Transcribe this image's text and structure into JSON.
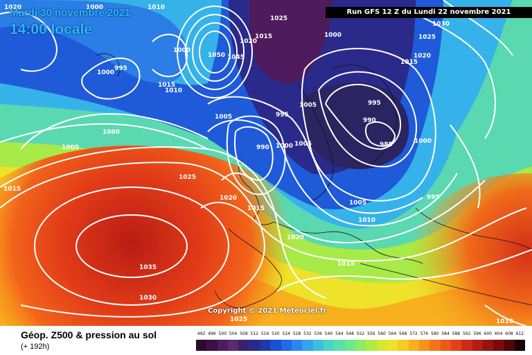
{
  "header": {
    "date": "Mardi 30 novembre 2021",
    "time": "14:00 locale",
    "run": "Run GFS 12 Z du Lundi 22 novembre 2021"
  },
  "copyright": "Copyright © 2021 Meteociel.fr",
  "footer": {
    "parameter": "Géop. Z500 & pression au sol",
    "lead_time": "(+ 192h)"
  },
  "scale": {
    "labels": [
      "492",
      "496",
      "500",
      "504",
      "508",
      "512",
      "516",
      "520",
      "524",
      "528",
      "532",
      "536",
      "540",
      "544",
      "548",
      "552",
      "556",
      "560",
      "564",
      "568",
      "572",
      "576",
      "580",
      "584",
      "588",
      "592",
      "596",
      "600",
      "604",
      "608",
      "612"
    ],
    "colors": [
      "#2a0a2e",
      "#3d0f45",
      "#4e1b5c",
      "#5a2a6e",
      "#3a2170",
      "#2a2a8a",
      "#1f3aa8",
      "#1a4fd0",
      "#1e6aea",
      "#2a88f0",
      "#33a4ec",
      "#3cbfe0",
      "#48d4c8",
      "#58e0a8",
      "#6ee88a",
      "#8cec66",
      "#b0ec46",
      "#d2ea30",
      "#eee22a",
      "#f6ca22",
      "#f8ae1e",
      "#f8921a",
      "#f47418",
      "#ee5818",
      "#e24018",
      "#cc2c16",
      "#b41c14",
      "#981210",
      "#7a0a0c",
      "#520606",
      "#1a0000"
    ]
  },
  "map_labels": {
    "isobars": [
      "1020",
      "1000",
      "1010",
      "1025",
      "1030",
      "1000",
      "995",
      "1000",
      "1015",
      "1010",
      "1050",
      "1045",
      "1020",
      "1015",
      "1000",
      "1005",
      "995",
      "1005",
      "990",
      "990",
      "995",
      "1000",
      "1005",
      "1000",
      "985",
      "1025",
      "1020",
      "1015",
      "1000",
      "1000",
      "1015",
      "1025",
      "1020",
      "1015",
      "1005",
      "1010",
      "995",
      "1020",
      "1015",
      "1035",
      "1030",
      "1025",
      "1010"
    ]
  }
}
